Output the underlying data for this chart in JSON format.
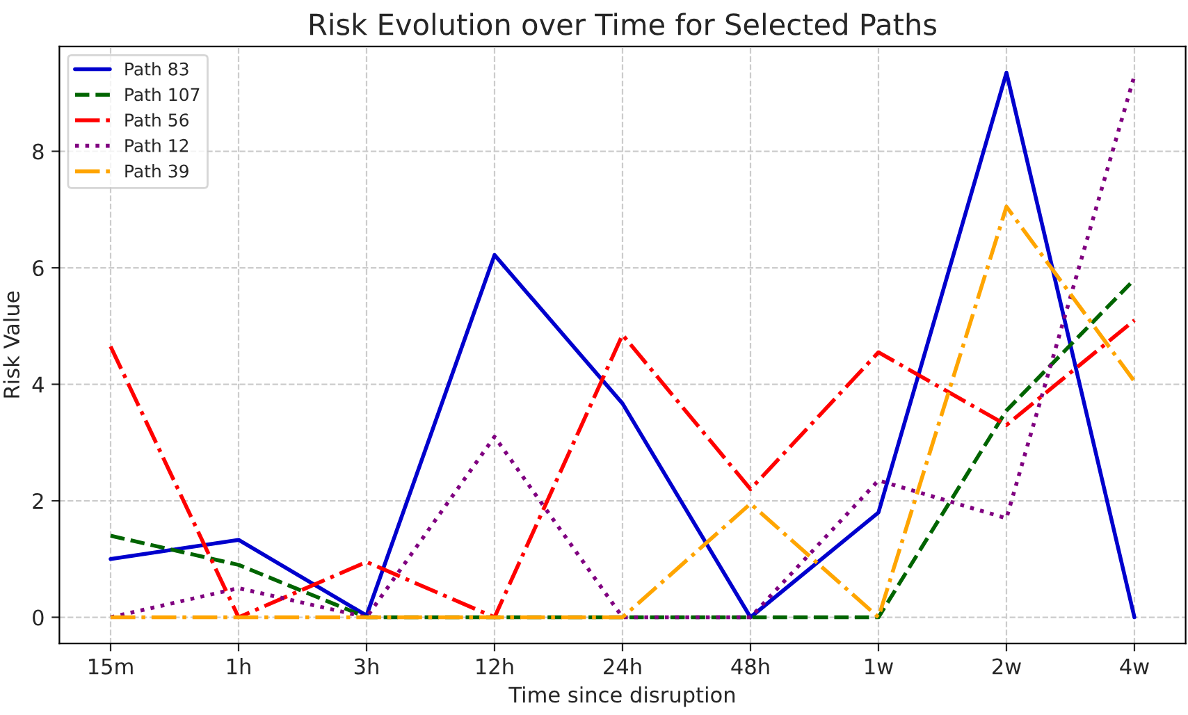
{
  "chart_data": {
    "type": "line",
    "title": "Risk Evolution over Time for Selected Paths",
    "xlabel": "Time since disruption",
    "ylabel": "Risk Value",
    "categories": [
      "15m",
      "1h",
      "3h",
      "12h",
      "24h",
      "48h",
      "1w",
      "2w",
      "4w"
    ],
    "series": [
      {
        "name": "Path 83",
        "color": "#0000cd",
        "line_style": "solid",
        "values": [
          1.0,
          1.33,
          0.03,
          6.22,
          3.67,
          0,
          1.8,
          9.35,
          0
        ]
      },
      {
        "name": "Path 107",
        "color": "#006400",
        "line_style": "dashed",
        "values": [
          1.4,
          0.9,
          0,
          0,
          0,
          0,
          0,
          3.55,
          5.8
        ]
      },
      {
        "name": "Path 56",
        "color": "#ff0000",
        "line_style": "dashdot",
        "values": [
          4.65,
          0,
          0.95,
          0,
          4.85,
          2.2,
          4.55,
          3.3,
          5.1
        ]
      },
      {
        "name": "Path 12",
        "color": "#800080",
        "line_style": "dotted",
        "values": [
          0,
          0.5,
          0,
          3.1,
          0,
          0,
          2.35,
          1.7,
          9.3
        ]
      },
      {
        "name": "Path 39",
        "color": "#ffa500",
        "line_style": "dashdot",
        "values": [
          0,
          0,
          0,
          0,
          0,
          1.95,
          0,
          7.05,
          4.05
        ]
      }
    ],
    "ylim": [
      -0.45,
      9.8
    ],
    "yticks": [
      0,
      2,
      4,
      6,
      8
    ],
    "grid": true,
    "legend": "top left"
  }
}
